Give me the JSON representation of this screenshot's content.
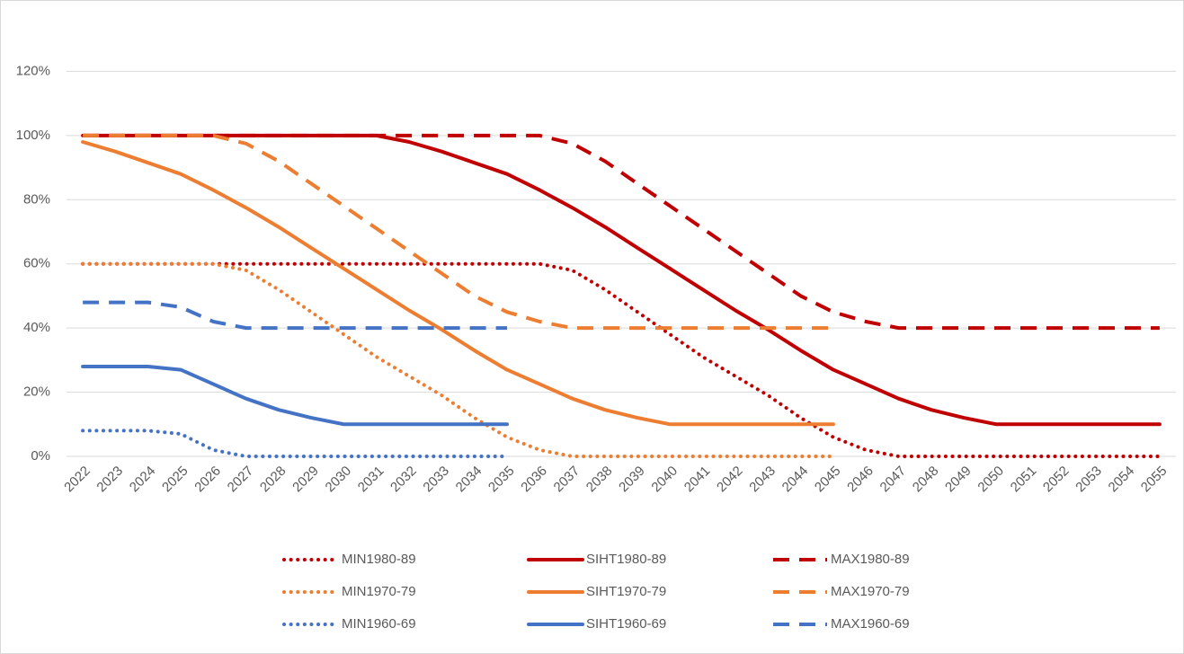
{
  "chart_data": {
    "type": "line",
    "categories": [
      "2022",
      "2023",
      "2024",
      "2025",
      "2026",
      "2027",
      "2028",
      "2029",
      "2030",
      "2031",
      "2032",
      "2033",
      "2034",
      "2035",
      "2036",
      "2037",
      "2038",
      "2039",
      "2040",
      "2041",
      "2042",
      "2043",
      "2044",
      "2045",
      "2046",
      "2047",
      "2048",
      "2049",
      "2050",
      "2051",
      "2052",
      "2053",
      "2054",
      "2055"
    ],
    "ylim": [
      0,
      140
    ],
    "yticks": [
      {
        "value": 0,
        "label": "0%"
      },
      {
        "value": 20,
        "label": "20%"
      },
      {
        "value": 40,
        "label": "40%"
      },
      {
        "value": 60,
        "label": "60%"
      },
      {
        "value": 80,
        "label": "80%"
      },
      {
        "value": 100,
        "label": "100%"
      },
      {
        "value": 120,
        "label": "120%"
      }
    ],
    "grid": true,
    "legend": "bottom",
    "series": [
      {
        "name": "MIN1980-89",
        "color": "#c00000",
        "dash": "dotted",
        "values": [
          60,
          60,
          60,
          60,
          60,
          60,
          60,
          60,
          60,
          60,
          60,
          60,
          60,
          60,
          60,
          58,
          52,
          45,
          38,
          31,
          25,
          19,
          12,
          6,
          2,
          0,
          0,
          0,
          0,
          0,
          0,
          0,
          0,
          0
        ]
      },
      {
        "name": "SIHT1980-89",
        "color": "#c00000",
        "dash": "solid",
        "values": [
          100,
          100,
          100,
          100,
          100,
          100,
          100,
          100,
          100,
          100,
          98,
          95,
          91.5,
          88,
          83,
          77.5,
          71.5,
          65,
          58.5,
          52,
          45.5,
          39.5,
          33,
          27,
          22.5,
          18,
          14.5,
          12,
          10,
          10,
          10,
          10,
          10,
          10
        ]
      },
      {
        "name": "MAX1980-89",
        "color": "#c00000",
        "dash": "dashed",
        "values": [
          100,
          100,
          100,
          100,
          100,
          100,
          100,
          100,
          100,
          100,
          100,
          100,
          100,
          100,
          100,
          97.5,
          92,
          85,
          78,
          71,
          64,
          57,
          50,
          45,
          42,
          40,
          40,
          40,
          40,
          40,
          40,
          40,
          40,
          40
        ]
      },
      {
        "name": "MIN1970-79",
        "color": "#ed7d31",
        "dash": "dotted",
        "values": [
          60,
          60,
          60,
          60,
          60,
          58,
          52,
          45,
          38,
          31,
          25,
          19,
          12,
          6,
          2,
          0,
          0,
          0,
          0,
          0,
          0,
          0,
          0,
          0,
          null,
          null,
          null,
          null,
          null,
          null,
          null,
          null,
          null,
          null
        ]
      },
      {
        "name": "SIHT1970-79",
        "color": "#ed7d31",
        "dash": "solid",
        "values": [
          98,
          95,
          91.5,
          88,
          83,
          77.5,
          71.5,
          65,
          58.5,
          52,
          45.5,
          39.5,
          33,
          27,
          22.5,
          18,
          14.5,
          12,
          10,
          10,
          10,
          10,
          10,
          10,
          null,
          null,
          null,
          null,
          null,
          null,
          null,
          null,
          null,
          null
        ]
      },
      {
        "name": "MAX1970-79",
        "color": "#ed7d31",
        "dash": "dashed",
        "values": [
          100,
          100,
          100,
          100,
          100,
          97.5,
          92,
          85,
          78,
          71,
          64,
          57,
          50,
          45,
          42,
          40,
          40,
          40,
          40,
          40,
          40,
          40,
          40,
          40,
          null,
          null,
          null,
          null,
          null,
          null,
          null,
          null,
          null,
          null
        ]
      },
      {
        "name": "MIN1960-69",
        "color": "#4472c4",
        "dash": "dotted",
        "values": [
          8,
          8,
          8,
          7,
          2,
          0,
          0,
          0,
          0,
          0,
          0,
          0,
          0,
          0,
          null,
          null,
          null,
          null,
          null,
          null,
          null,
          null,
          null,
          null,
          null,
          null,
          null,
          null,
          null,
          null,
          null,
          null,
          null,
          null
        ]
      },
      {
        "name": "SIHT1960-69",
        "color": "#4472c4",
        "dash": "solid",
        "values": [
          28,
          28,
          28,
          27,
          22.5,
          18,
          14.5,
          12,
          10,
          10,
          10,
          10,
          10,
          10,
          null,
          null,
          null,
          null,
          null,
          null,
          null,
          null,
          null,
          null,
          null,
          null,
          null,
          null,
          null,
          null,
          null,
          null,
          null,
          null
        ]
      },
      {
        "name": "MAX1960-69",
        "color": "#4472c4",
        "dash": "dashed",
        "values": [
          48,
          48,
          48,
          46.5,
          42,
          40,
          40,
          40,
          40,
          40,
          40,
          40,
          40,
          40,
          null,
          null,
          null,
          null,
          null,
          null,
          null,
          null,
          null,
          null,
          null,
          null,
          null,
          null,
          null,
          null,
          null,
          null,
          null,
          null
        ]
      }
    ]
  }
}
